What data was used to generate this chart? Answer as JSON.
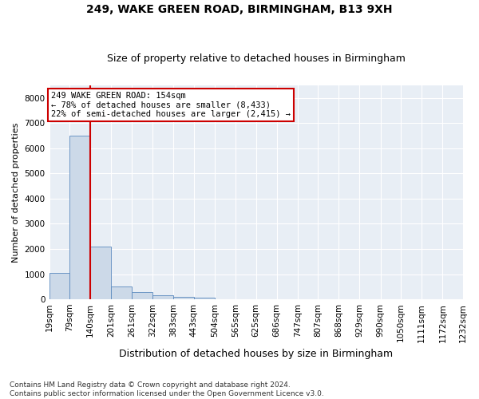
{
  "title1": "249, WAKE GREEN ROAD, BIRMINGHAM, B13 9XH",
  "title2": "Size of property relative to detached houses in Birmingham",
  "xlabel": "Distribution of detached houses by size in Birmingham",
  "ylabel": "Number of detached properties",
  "footnote": "Contains HM Land Registry data © Crown copyright and database right 2024.\nContains public sector information licensed under the Open Government Licence v3.0.",
  "bar_color": "#ccd9e8",
  "bar_edge_color": "#5b8abf",
  "vline_color": "#cc0000",
  "vline_x_index": 2,
  "annotation_line1": "249 WAKE GREEN ROAD: 154sqm",
  "annotation_line2": "← 78% of detached houses are smaller (8,433)",
  "annotation_line3": "22% of semi-detached houses are larger (2,415) →",
  "bin_edges": [
    19,
    79,
    140,
    201,
    261,
    322,
    383,
    443,
    504,
    565,
    625,
    686,
    747,
    807,
    868,
    929,
    990,
    1050,
    1111,
    1172,
    1232
  ],
  "bin_counts": [
    1050,
    6500,
    2100,
    500,
    280,
    150,
    100,
    50,
    0,
    0,
    0,
    0,
    0,
    0,
    0,
    0,
    0,
    0,
    0,
    0
  ],
  "ylim": [
    0,
    8500
  ],
  "yticks": [
    0,
    1000,
    2000,
    3000,
    4000,
    5000,
    6000,
    7000,
    8000
  ],
  "background_color": "#e8eef5",
  "grid_color": "#ffffff",
  "title1_fontsize": 10,
  "title2_fontsize": 9,
  "xlabel_fontsize": 9,
  "ylabel_fontsize": 8,
  "tick_fontsize": 7.5,
  "annot_fontsize": 7.5,
  "footnote_fontsize": 6.5
}
